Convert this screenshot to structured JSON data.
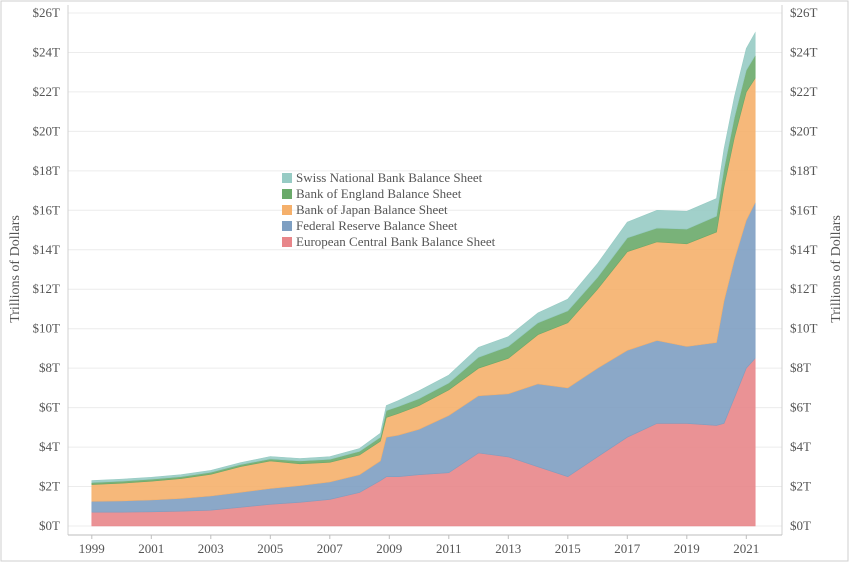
{
  "chart_data": {
    "type": "area",
    "stacked": true,
    "xlabel": "",
    "ylabel_left": "Trillions of Dollars",
    "ylabel_right": "Trillions of Dollars",
    "xlim": [
      1998.2,
      2022.2
    ],
    "ylim": [
      0,
      26
    ],
    "grid": true,
    "legend_position": "center-left",
    "x_ticks": [
      "1999",
      "2001",
      "2003",
      "2005",
      "2007",
      "2009",
      "2011",
      "2013",
      "2015",
      "2017",
      "2019",
      "2021"
    ],
    "y_ticks": [
      "$0T",
      "$2T",
      "$4T",
      "$6T",
      "$8T",
      "$10T",
      "$12T",
      "$14T",
      "$16T",
      "$18T",
      "$20T",
      "$22T",
      "$24T",
      "$26T"
    ],
    "x": [
      1999,
      2000,
      2001,
      2002,
      2003,
      2004,
      2005,
      2006,
      2007,
      2008,
      2008.7,
      2008.9,
      2009.3,
      2010,
      2011,
      2012,
      2013,
      2014,
      2015,
      2016,
      2017,
      2018,
      2019,
      2020,
      2020.25,
      2020.6,
      2021,
      2021.3
    ],
    "series": [
      {
        "name": "European Central Bank Balance Sheet",
        "color": "#e8868a",
        "values": [
          0.7,
          0.7,
          0.72,
          0.75,
          0.8,
          0.95,
          1.1,
          1.2,
          1.35,
          1.7,
          2.3,
          2.5,
          2.5,
          2.6,
          2.7,
          3.7,
          3.5,
          3.0,
          2.5,
          3.5,
          4.5,
          5.2,
          5.2,
          5.1,
          5.2,
          6.5,
          8.0,
          8.5
        ]
      },
      {
        "name": "Federal Reserve Balance Sheet",
        "color": "#7e9fc2",
        "values": [
          0.55,
          0.57,
          0.6,
          0.65,
          0.72,
          0.76,
          0.8,
          0.85,
          0.88,
          0.9,
          1.0,
          2.0,
          2.1,
          2.3,
          2.9,
          2.9,
          3.2,
          4.2,
          4.5,
          4.5,
          4.4,
          4.2,
          3.9,
          4.2,
          6.2,
          7.0,
          7.5,
          7.9
        ]
      },
      {
        "name": "Bank of Japan Balance Sheet",
        "color": "#f5b06b",
        "values": [
          0.85,
          0.9,
          0.95,
          1.0,
          1.1,
          1.3,
          1.4,
          1.1,
          1.0,
          1.0,
          1.0,
          1.0,
          1.1,
          1.2,
          1.3,
          1.4,
          1.8,
          2.5,
          3.3,
          4.0,
          5.0,
          5.0,
          5.2,
          5.6,
          5.8,
          6.2,
          6.5,
          6.3
        ]
      },
      {
        "name": "Bank of England Balance Sheet",
        "color": "#6aaa6a",
        "values": [
          0.1,
          0.1,
          0.1,
          0.1,
          0.1,
          0.1,
          0.1,
          0.15,
          0.15,
          0.18,
          0.2,
          0.35,
          0.35,
          0.35,
          0.35,
          0.55,
          0.6,
          0.6,
          0.6,
          0.6,
          0.7,
          0.7,
          0.75,
          0.8,
          0.9,
          1.0,
          1.1,
          1.15
        ]
      },
      {
        "name": "Swiss National Bank Balance Sheet",
        "color": "#97cbc4",
        "values": [
          0.1,
          0.1,
          0.1,
          0.1,
          0.1,
          0.1,
          0.12,
          0.12,
          0.13,
          0.15,
          0.2,
          0.25,
          0.3,
          0.4,
          0.4,
          0.5,
          0.5,
          0.5,
          0.6,
          0.7,
          0.8,
          0.9,
          0.9,
          0.9,
          1.0,
          1.05,
          1.1,
          1.15
        ]
      }
    ]
  }
}
